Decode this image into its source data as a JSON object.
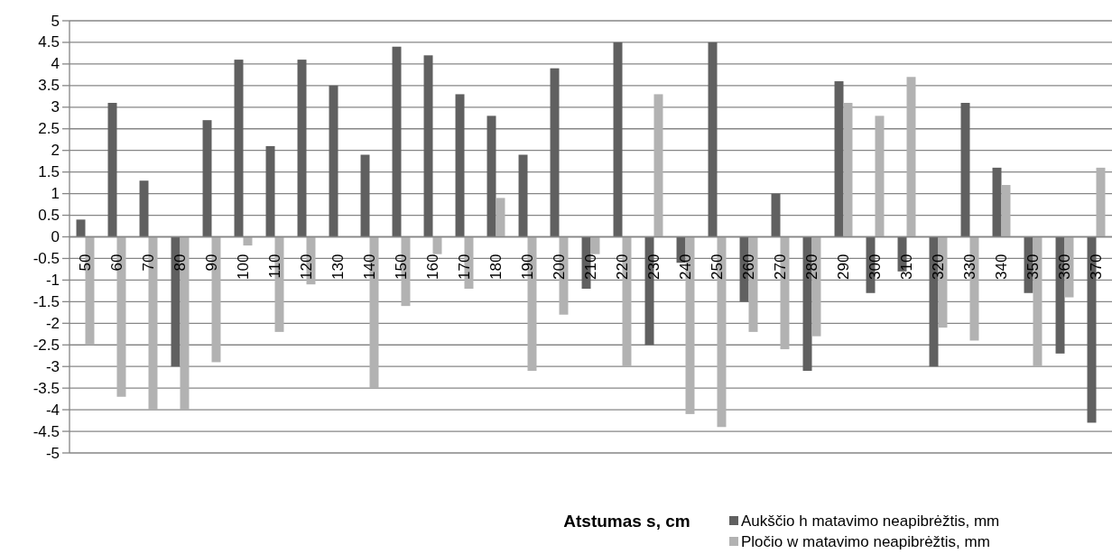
{
  "chart_data": {
    "type": "bar",
    "xlabel": "Atstumas s, cm",
    "categories": [
      "50",
      "60",
      "70",
      "80",
      "90",
      "100",
      "110",
      "120",
      "130",
      "140",
      "150",
      "160",
      "170",
      "180",
      "190",
      "200",
      "210",
      "220",
      "230",
      "240",
      "250",
      "260",
      "270",
      "280",
      "290",
      "300",
      "310",
      "320",
      "330",
      "340",
      "350",
      "360",
      "370"
    ],
    "series": [
      {
        "name": "Aukščio h matavimo neapibrėžtis, mm",
        "color": "#606060",
        "values": [
          0.4,
          3.1,
          1.3,
          -3,
          2.7,
          4.1,
          2.1,
          4.1,
          3.5,
          1.9,
          4.4,
          4.2,
          3.3,
          2.8,
          1.9,
          3.9,
          -1.2,
          4.5,
          -2.5,
          -0.6,
          4.5,
          -1.5,
          1,
          -3.1,
          3.6,
          -1.3,
          -0.8,
          -3,
          3.1,
          1.6,
          -1.3,
          -2.7,
          -4.3
        ]
      },
      {
        "name": "Pločio w matavimo neapibrėžtis, mm",
        "color": "#b2b2b2",
        "values": [
          -2.5,
          -3.7,
          -4,
          -4,
          -2.9,
          -0.2,
          -2.2,
          -1.1,
          0,
          -3.5,
          -1.6,
          -0.4,
          -1.2,
          0.9,
          -3.1,
          -1.8,
          -0.4,
          -3,
          3.3,
          -4.1,
          -4.4,
          -2.2,
          -2.6,
          -2.3,
          3.1,
          2.8,
          3.7,
          -2.1,
          -2.4,
          1.2,
          -3,
          -1.4,
          1.6
        ]
      }
    ],
    "ylim": [
      -5,
      5
    ],
    "yticks": [
      -5,
      -4.5,
      -4,
      -3.5,
      -3,
      -2.5,
      -2,
      -1.5,
      -1,
      -0.5,
      0,
      0.5,
      1,
      1.5,
      2,
      2.5,
      3,
      3.5,
      4,
      4.5,
      5
    ],
    "grid": "y",
    "legend": "bottom right"
  }
}
